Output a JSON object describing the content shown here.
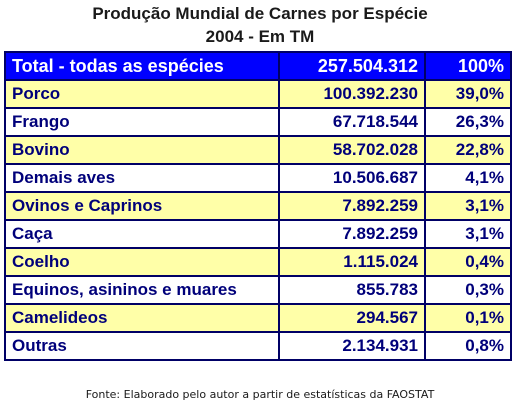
{
  "title_line1": "Produção Mundial de Carnes por Espécie",
  "title_line2": "2004 - Em TM",
  "header": {
    "label": "Total - todas as espécies",
    "value": "257.504.312",
    "percent": "100%"
  },
  "rows": [
    {
      "label": "Porco",
      "value": "100.392.230",
      "percent": "39,0%"
    },
    {
      "label": "Frango",
      "value": "67.718.544",
      "percent": "26,3%"
    },
    {
      "label": "Bovino",
      "value": "58.702.028",
      "percent": "22,8%"
    },
    {
      "label": "Demais aves",
      "value": "10.506.687",
      "percent": "4,1%"
    },
    {
      "label": "Ovinos e Caprinos",
      "value": "7.892.259",
      "percent": "3,1%"
    },
    {
      "label": "Caça",
      "value": "7.892.259",
      "percent": "3,1%"
    },
    {
      "label": "Coelho",
      "value": "1.115.024",
      "percent": "0,4%"
    },
    {
      "label": "Equinos, asininos e muares",
      "value": "855.783",
      "percent": "0,3%"
    },
    {
      "label": "Camelideos",
      "value": "294.567",
      "percent": "0,1%"
    },
    {
      "label": "Outras",
      "value": "2.134.931",
      "percent": "0,8%"
    }
  ],
  "footer": "Fonte: Elaborado pelo autor a partir de estatísticas da FAOSTAT",
  "colors": {
    "header_bg": "#0000ff",
    "row_yellow": "#ffffa8",
    "row_white": "#ffffff",
    "text_blue": "#00007a"
  }
}
